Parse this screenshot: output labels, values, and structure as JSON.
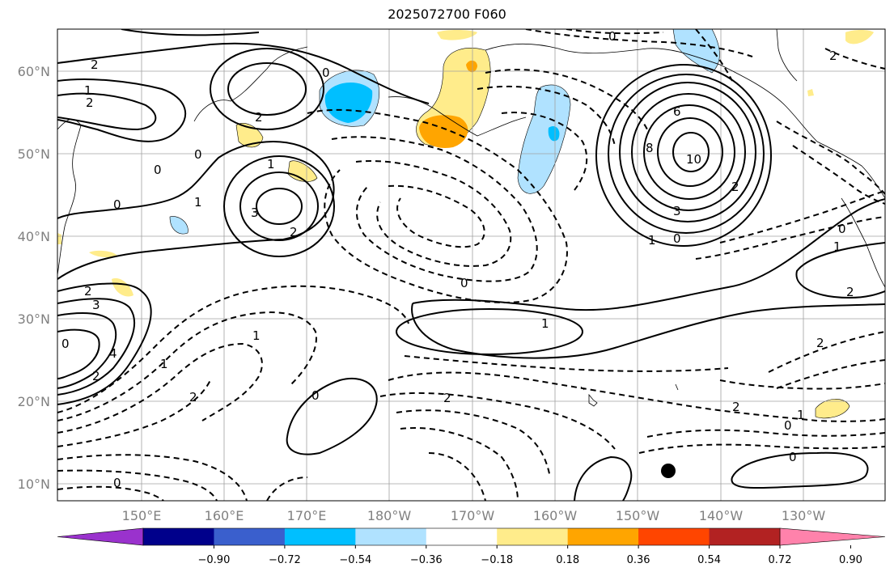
{
  "title": "2025072700 F060",
  "lat_labels": [
    "60°N",
    "50°N",
    "40°N",
    "30°N",
    "20°N",
    "10°N"
  ],
  "lon_labels": [
    "150°E",
    "160°E",
    "170°E",
    "180°W",
    "170°W",
    "160°W",
    "150°W",
    "140°W",
    "130°W"
  ],
  "contour_labels": [
    "2",
    "1",
    "2",
    "2",
    "0",
    "0",
    "0",
    "1",
    "0",
    "3",
    "2",
    "1",
    "2",
    "3",
    "2",
    "0",
    "4",
    "6",
    "8",
    "10",
    "3",
    "2",
    "1",
    "0",
    "0",
    "1",
    "2",
    "1",
    "2",
    "0",
    "2",
    "2",
    "1",
    "1",
    "0",
    "0",
    "1",
    "2",
    "0",
    "2",
    "0",
    "0"
  ],
  "colorbar": {
    "colors": [
      "#9a32cd",
      "#00008b",
      "#3a5fcd",
      "#00bfff",
      "#b0e2ff",
      "#ffffff",
      "#ffec8b",
      "#ffa500",
      "#ff4500",
      "#b22222",
      "#ff82ab"
    ],
    "tick_labels": [
      "−0.90",
      "−0.72",
      "−0.54",
      "−0.36",
      "−0.18",
      "0.18",
      "0.36",
      "0.54",
      "0.72",
      "0.90"
    ]
  }
}
